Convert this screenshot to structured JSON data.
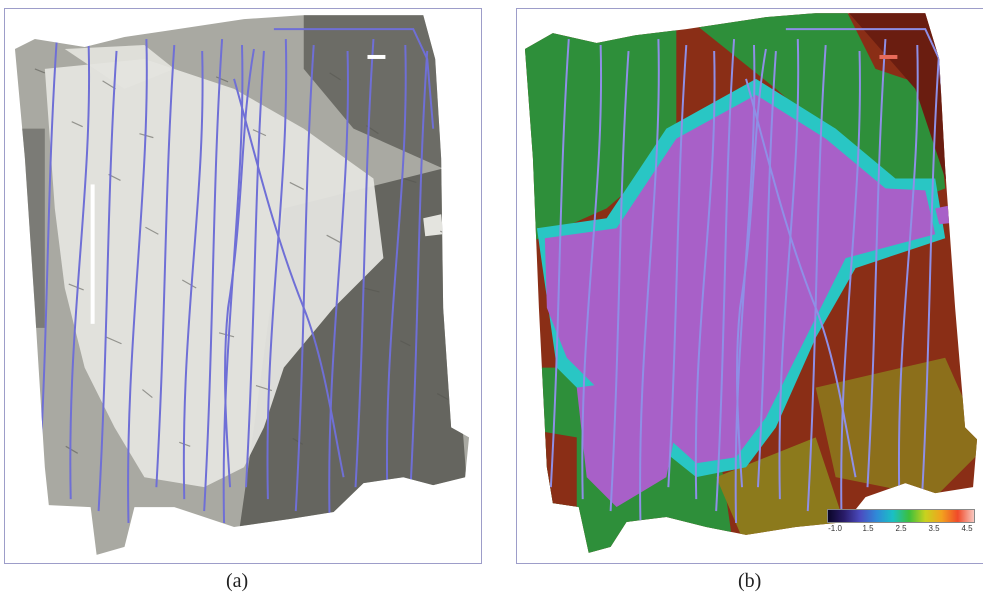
{
  "panels": [
    {
      "id": "a",
      "caption": "(a)",
      "description": "grayscale sidescan sonar mosaic with survey track lines",
      "colors": {
        "light": "#e4e4df",
        "mid": "#a9a9a2",
        "dark": "#5d5d58",
        "track": "#6f6fd6",
        "frame": "#9d9dc9"
      },
      "scale_bar_color": "#ffffff"
    },
    {
      "id": "b",
      "caption": "(b)",
      "description": "color-coded classification map with survey track lines",
      "colors": {
        "purple": "#a860c8",
        "green": "#2e8f3a",
        "cyan": "#29c6c4",
        "brown": "#8a2e16",
        "olive": "#8c7a1c",
        "dark_red": "#6a1d10",
        "track": "#8f8fe6",
        "frame": "#9d9dc9"
      },
      "scale_bar_color": "#e86a5a"
    }
  ],
  "colorbar": {
    "ticks": [
      "-1.0",
      "1.5",
      "2.5",
      "3.5",
      "4.5"
    ],
    "gradient": [
      "#0a0528",
      "#2a1c6a",
      "#4b4cc0",
      "#2f8ad8",
      "#1ac0c4",
      "#3cbf3c",
      "#c8d21e",
      "#f2a21e",
      "#f04a2a",
      "#f8c8c0"
    ]
  }
}
